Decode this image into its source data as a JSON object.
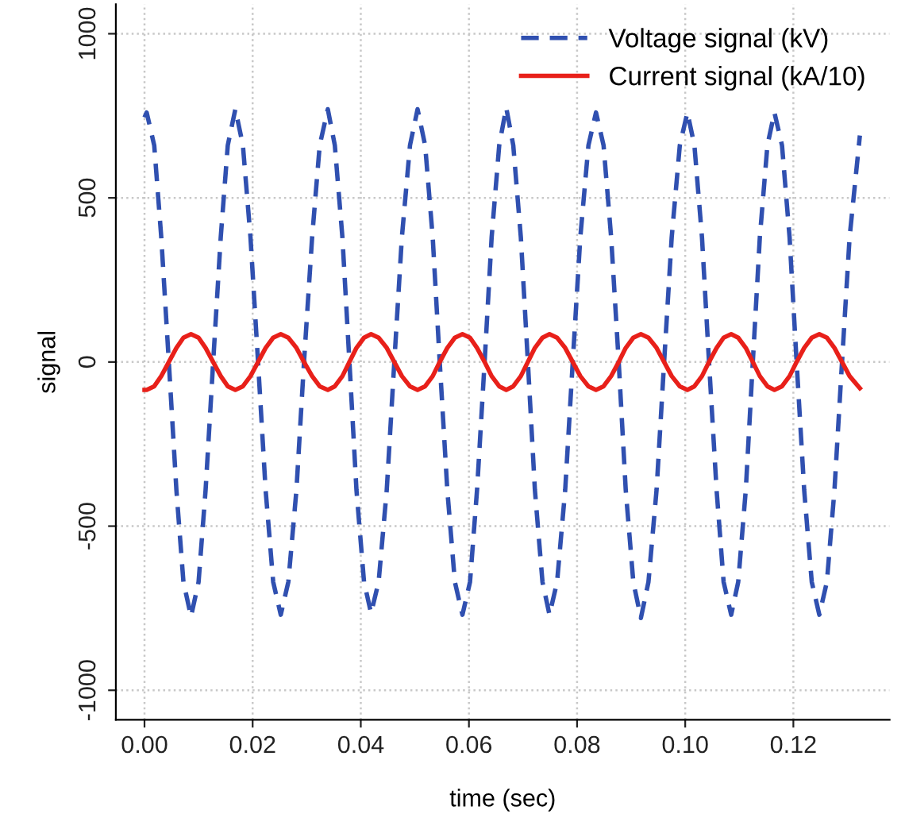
{
  "chart_data": {
    "type": "line",
    "xlabel": "time (sec)",
    "ylabel": "signal",
    "xlim": [
      -0.0053,
      0.1378
    ],
    "ylim": [
      -1090,
      1090
    ],
    "xticks": [
      {
        "value": 0,
        "label": "0.00"
      },
      {
        "value": 0.02,
        "label": "0.02"
      },
      {
        "value": 0.04,
        "label": "0.04"
      },
      {
        "value": 0.06,
        "label": "0.06"
      },
      {
        "value": 0.08,
        "label": "0.08"
      },
      {
        "value": 0.1,
        "label": "0.10"
      },
      {
        "value": 0.12,
        "label": "0.12"
      }
    ],
    "yticks": [
      {
        "value": -1000,
        "label": "-1000"
      },
      -500,
      0,
      500,
      1000
    ],
    "grid": true,
    "legend": "top right",
    "x": [
      0.0,
      0.0004,
      0.0018,
      0.0031,
      0.0045,
      0.0059,
      0.0072,
      0.0086,
      0.01,
      0.0113,
      0.0127,
      0.0141,
      0.0154,
      0.0168,
      0.0182,
      0.0196,
      0.021,
      0.0224,
      0.0238,
      0.0252,
      0.0266,
      0.0281,
      0.0295,
      0.031,
      0.0324,
      0.0339,
      0.0352,
      0.0366,
      0.0379,
      0.0392,
      0.0406,
      0.0419,
      0.0433,
      0.0448,
      0.0462,
      0.0476,
      0.0491,
      0.0505,
      0.0519,
      0.0533,
      0.0546,
      0.056,
      0.0574,
      0.0588,
      0.0602,
      0.0615,
      0.0629,
      0.0642,
      0.0656,
      0.0669,
      0.0682,
      0.0696,
      0.0709,
      0.0722,
      0.0736,
      0.0749,
      0.0763,
      0.0778,
      0.0792,
      0.0806,
      0.0821,
      0.0835,
      0.0849,
      0.0863,
      0.0877,
      0.089,
      0.0904,
      0.0918,
      0.0932,
      0.0947,
      0.0961,
      0.0975,
      0.099,
      0.1004,
      0.1017,
      0.1031,
      0.1044,
      0.1058,
      0.1071,
      0.1085,
      0.1098,
      0.1112,
      0.1125,
      0.1138,
      0.1152,
      0.1165,
      0.1179,
      0.1193,
      0.1206,
      0.122,
      0.1234,
      0.1248,
      0.1262,
      0.1276,
      0.129,
      0.1304,
      0.1323
    ],
    "series": [
      {
        "name": "Voltage signal (kV)",
        "color": "#3050b0",
        "line_style": "dashed",
        "values": [
          745,
          760,
          660,
          380,
          0,
          -390,
          -670,
          -775,
          -670,
          -390,
          0,
          380,
          660,
          770,
          660,
          380,
          0,
          -390,
          -670,
          -770,
          -670,
          -390,
          0,
          380,
          660,
          770,
          660,
          380,
          0,
          -390,
          -670,
          -765,
          -670,
          -390,
          0,
          380,
          660,
          770,
          660,
          380,
          0,
          -390,
          -670,
          -770,
          -670,
          -390,
          0,
          380,
          660,
          775,
          660,
          380,
          0,
          -390,
          -670,
          -770,
          -670,
          -390,
          0,
          380,
          660,
          760,
          660,
          380,
          0,
          -390,
          -670,
          -780,
          -670,
          -390,
          0,
          380,
          660,
          760,
          660,
          380,
          0,
          -390,
          -670,
          -770,
          -670,
          -390,
          0,
          380,
          660,
          760,
          660,
          380,
          0,
          -390,
          -670,
          -770,
          -670,
          -390,
          0,
          380,
          690
        ]
      },
      {
        "name": "Current signal (kA/10)",
        "color": "#e8201a",
        "line_style": "solid",
        "values": [
          -85,
          -85,
          -74,
          -43,
          0,
          43,
          74,
          85,
          74,
          43,
          0,
          -43,
          -74,
          -85,
          -74,
          -43,
          0,
          43,
          74,
          85,
          74,
          43,
          0,
          -43,
          -74,
          -85,
          -74,
          -43,
          0,
          43,
          74,
          85,
          74,
          43,
          0,
          -43,
          -74,
          -85,
          -74,
          -43,
          0,
          43,
          74,
          85,
          74,
          43,
          0,
          -43,
          -74,
          -85,
          -74,
          -43,
          0,
          43,
          74,
          85,
          74,
          43,
          0,
          -43,
          -74,
          -85,
          -74,
          -43,
          0,
          43,
          74,
          85,
          74,
          43,
          0,
          -43,
          -74,
          -85,
          -74,
          -43,
          0,
          43,
          74,
          85,
          74,
          43,
          0,
          -43,
          -74,
          -85,
          -74,
          -43,
          0,
          43,
          74,
          85,
          74,
          43,
          0,
          -43,
          -80
        ]
      }
    ]
  }
}
